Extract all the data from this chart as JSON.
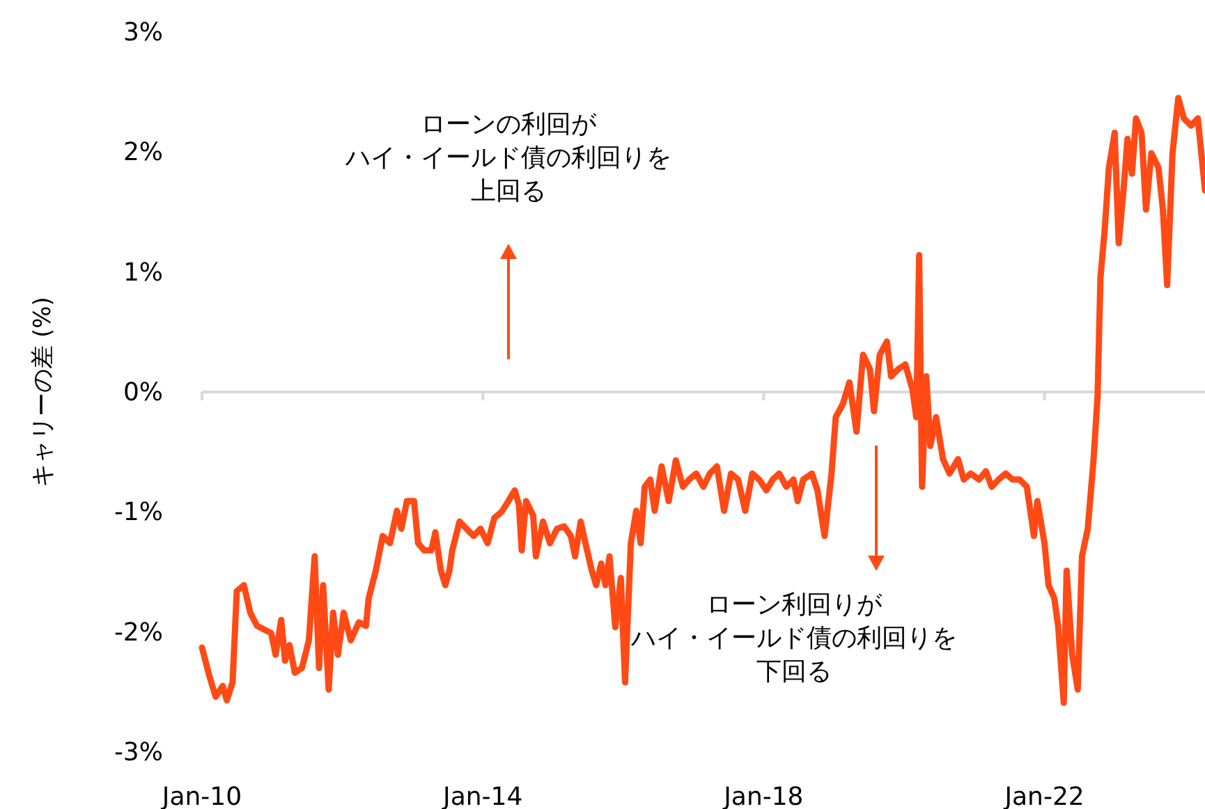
{
  "chart_data": {
    "type": "line",
    "ylabel": "キャリーの差 (%)",
    "x": [
      "2010-01-01",
      "2010-02-07",
      "2010-03-13",
      "2010-04-19",
      "2010-05-10",
      "2010-06-09",
      "2010-07-01",
      "2010-08-07",
      "2010-09-09",
      "2010-10-15",
      "2010-11-21",
      "2010-12-27",
      "2011-01-19",
      "2011-02-17",
      "2011-03-09",
      "2011-04-01",
      "2011-04-29",
      "2011-06-05",
      "2011-07-11",
      "2011-08-10",
      "2011-09-02",
      "2011-09-23",
      "2011-10-22",
      "2011-11-14",
      "2011-12-09",
      "2012-01-08",
      "2012-02-14",
      "2012-03-27",
      "2012-05-03",
      "2012-05-17",
      "2012-06-23",
      "2012-07-29",
      "2012-09-05",
      "2012-10-11",
      "2012-11-03",
      "2012-12-02",
      "2013-01-08",
      "2013-01-29",
      "2013-03-02",
      "2013-04-08",
      "2013-04-29",
      "2013-05-28",
      "2013-06-20",
      "2013-07-11",
      "2013-07-26",
      "2013-09-02",
      "2013-10-08",
      "2013-11-14",
      "2013-12-20",
      "2014-01-26",
      "2014-03-02",
      "2014-04-08",
      "2014-05-14",
      "2014-06-16",
      "2014-07-08",
      "2014-07-22",
      "2014-08-14",
      "2014-09-20",
      "2014-10-04",
      "2014-11-10",
      "2014-12-16",
      "2015-01-22",
      "2015-02-28",
      "2015-04-04",
      "2015-04-26",
      "2015-05-25",
      "2015-06-16",
      "2015-07-22",
      "2015-08-14",
      "2015-09-09",
      "2015-10-01",
      "2015-10-22",
      "2015-11-21",
      "2015-12-20",
      "2016-01-11",
      "2016-02-10",
      "2016-03-09",
      "2016-04-01",
      "2016-04-22",
      "2016-05-21",
      "2016-06-13",
      "2016-07-19",
      "2016-08-25",
      "2016-10-01",
      "2016-11-07",
      "2016-12-09",
      "2017-01-15",
      "2017-02-21",
      "2017-03-27",
      "2017-05-03",
      "2017-06-09",
      "2017-07-15",
      "2017-08-21",
      "2017-09-27",
      "2017-11-03",
      "2017-12-09",
      "2018-01-15",
      "2018-02-17",
      "2018-03-23",
      "2018-04-29",
      "2018-06-05",
      "2018-06-27",
      "2018-07-26",
      "2018-09-09",
      "2018-10-08",
      "2018-11-14",
      "2018-12-20",
      "2019-01-11",
      "2019-02-17",
      "2019-03-23",
      "2019-04-29",
      "2019-06-02",
      "2019-07-08",
      "2019-07-29",
      "2019-08-28",
      "2019-10-04",
      "2019-10-26",
      "2019-12-02",
      "2020-01-08",
      "2020-02-14",
      "2020-03-05",
      "2020-03-20",
      "2020-04-04",
      "2020-04-26",
      "2020-05-17",
      "2020-06-16",
      "2020-07-22",
      "2020-08-25",
      "2020-10-08",
      "2020-11-07",
      "2020-12-13",
      "2021-01-26",
      "2021-03-02",
      "2021-04-01",
      "2021-05-07",
      "2021-06-13",
      "2021-07-19",
      "2021-08-25",
      "2021-10-01",
      "2021-11-07",
      "2021-11-25",
      "2022-01-01",
      "2022-01-22",
      "2022-02-21",
      "2022-03-13",
      "2022-04-11",
      "2022-04-26",
      "2022-05-25",
      "2022-06-23",
      "2022-07-15",
      "2022-08-14",
      "2022-09-13",
      "2022-10-04",
      "2022-10-19",
      "2022-11-10",
      "2022-12-02",
      "2023-01-01",
      "2023-01-22",
      "2023-02-17",
      "2023-03-09",
      "2023-04-01",
      "2023-04-22",
      "2023-05-21",
      "2023-06-13",
      "2023-07-11",
      "2023-08-17",
      "2023-09-09",
      "2023-10-01",
      "2023-10-29",
      "2023-11-28",
      "2023-12-27",
      "2024-02-03",
      "2024-03-09",
      "2024-04-15"
    ],
    "series": [
      {
        "color": "#ff4a16",
        "values": [
          -2.13,
          -2.36,
          -2.54,
          -2.45,
          -2.57,
          -2.42,
          -1.66,
          -1.61,
          -1.84,
          -1.95,
          -1.98,
          -2.01,
          -2.19,
          -1.9,
          -2.24,
          -2.11,
          -2.34,
          -2.3,
          -2.07,
          -1.37,
          -2.3,
          -1.61,
          -2.48,
          -1.84,
          -2.19,
          -1.84,
          -2.07,
          -1.92,
          -1.95,
          -1.72,
          -1.49,
          -1.2,
          -1.26,
          -0.99,
          -1.14,
          -0.91,
          -0.91,
          -1.26,
          -1.32,
          -1.32,
          -1.17,
          -1.49,
          -1.61,
          -1.49,
          -1.32,
          -1.08,
          -1.14,
          -1.2,
          -1.14,
          -1.26,
          -1.05,
          -1.0,
          -0.91,
          -0.82,
          -0.94,
          -1.32,
          -0.91,
          -1.03,
          -1.37,
          -1.08,
          -1.26,
          -1.14,
          -1.12,
          -1.2,
          -1.37,
          -1.08,
          -1.24,
          -1.49,
          -1.61,
          -1.43,
          -1.61,
          -1.37,
          -1.96,
          -1.55,
          -2.42,
          -1.26,
          -0.99,
          -1.26,
          -0.79,
          -0.73,
          -0.99,
          -0.62,
          -0.91,
          -0.57,
          -0.79,
          -0.73,
          -0.68,
          -0.79,
          -0.68,
          -0.62,
          -0.99,
          -0.68,
          -0.73,
          -0.99,
          -0.68,
          -0.73,
          -0.82,
          -0.73,
          -0.68,
          -0.79,
          -0.73,
          -0.91,
          -0.73,
          -0.68,
          -0.82,
          -1.2,
          -0.68,
          -0.21,
          -0.1,
          0.08,
          -0.33,
          0.31,
          0.19,
          -0.16,
          0.31,
          0.42,
          0.13,
          0.19,
          0.23,
          0.02,
          -0.21,
          1.14,
          -0.79,
          0.13,
          -0.45,
          -0.21,
          -0.56,
          -0.68,
          -0.56,
          -0.73,
          -0.68,
          -0.73,
          -0.66,
          -0.79,
          -0.73,
          -0.68,
          -0.73,
          -0.73,
          -0.79,
          -1.2,
          -0.91,
          -1.26,
          -1.61,
          -1.72,
          -1.95,
          -2.59,
          -1.49,
          -2.19,
          -2.48,
          -1.37,
          -1.14,
          -0.57,
          -0.04,
          0.95,
          1.35,
          1.87,
          2.16,
          1.24,
          1.7,
          2.11,
          1.82,
          2.28,
          2.16,
          1.52,
          1.99,
          1.87,
          1.52,
          0.89,
          1.99,
          2.45,
          2.28,
          2.22,
          2.28,
          1.68
        ]
      }
    ],
    "xlim": [
      "2010-01-01",
      "2024-04-15"
    ],
    "xticks": [
      {
        "value": "2010-01-01",
        "label": "Jan-10"
      },
      {
        "value": "2014-01-01",
        "label": "Jan-14"
      },
      {
        "value": "2018-01-01",
        "label": "Jan-18"
      },
      {
        "value": "2022-01-01",
        "label": "Jan-22"
      }
    ],
    "ylim": [
      -3,
      3
    ],
    "yticks": [
      {
        "value": -3,
        "label": "-3%"
      },
      {
        "value": -2,
        "label": "-2%"
      },
      {
        "value": -1,
        "label": "-1%"
      },
      {
        "value": 0,
        "label": "0%"
      },
      {
        "value": 1,
        "label": "1%"
      },
      {
        "value": 2,
        "label": "2%"
      },
      {
        "value": 3,
        "label": "3%"
      }
    ],
    "annotations": [
      "ローンの利回が",
      "ハイ・イールド債の利回りを",
      "上回る",
      "ローン利回りが",
      "ハイ・イールド債の利回りを",
      "下回る"
    ],
    "ref_lines": [
      {
        "axis": "y",
        "value": 0,
        "color": "#d9d9d9"
      }
    ]
  }
}
